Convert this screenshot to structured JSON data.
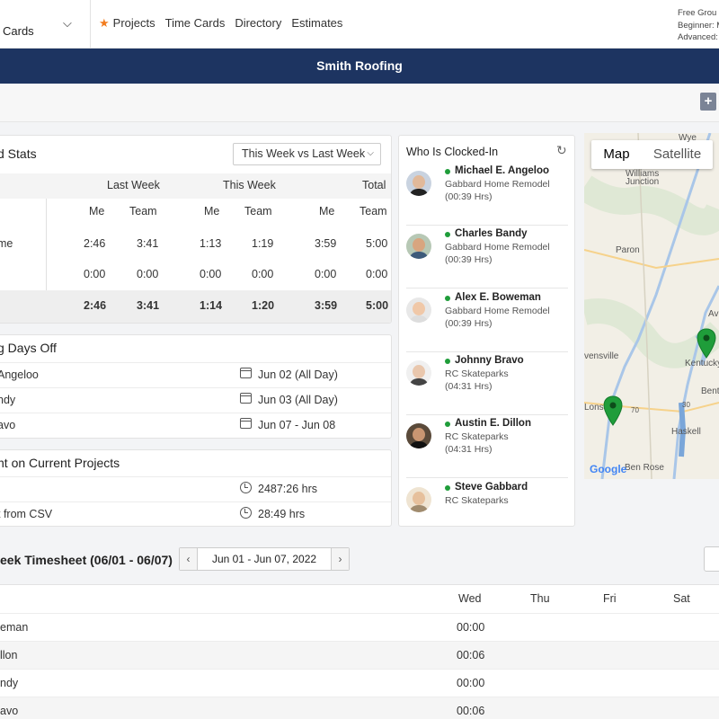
{
  "nav": {
    "select_label": "Cards",
    "links": [
      "Projects",
      "Time Cards",
      "Directory",
      "Estimates"
    ],
    "group_info": [
      "Free Grou",
      "Beginner: M",
      "Advanced: M"
    ]
  },
  "company": {
    "name": "Smith Roofing"
  },
  "stats": {
    "title": "d Stats",
    "period": "This Week vs Last Week",
    "group_headers": [
      "Last Week",
      "This Week",
      "Total"
    ],
    "sub_headers": [
      "Me",
      "Team",
      "Me",
      "Team",
      "Me",
      "Team"
    ],
    "rows": [
      {
        "label": "me",
        "values": [
          "2:46",
          "3:41",
          "1:13",
          "1:19",
          "3:59",
          "5:00"
        ]
      },
      {
        "label": "",
        "values": [
          "0:00",
          "0:00",
          "0:00",
          "0:00",
          "0:00",
          "0:00"
        ]
      }
    ],
    "totals": [
      "2:46",
      "3:41",
      "1:14",
      "1:20",
      "3:59",
      "5:00"
    ]
  },
  "days_off": {
    "title": "g Days Off",
    "items": [
      {
        "name": "Angeloo",
        "date": "Jun 02 (All Day)"
      },
      {
        "name": "ndy",
        "date": "Jun 03 (All Day)"
      },
      {
        "name": "avo",
        "date": "Jun 07 - Jun 08"
      }
    ]
  },
  "time_spent": {
    "title": "nt on Current Projects",
    "items": [
      {
        "name": "",
        "value": "2487:26 hrs"
      },
      {
        "name": "t from CSV",
        "value": "28:49 hrs"
      }
    ]
  },
  "clocked_in": {
    "title": "Who Is Clocked-In",
    "people": [
      {
        "name": "Michael E. Angeloo",
        "project": "Gabbard Home Remodel",
        "hours": "(00:39 Hrs)"
      },
      {
        "name": "Charles Bandy",
        "project": "Gabbard Home Remodel",
        "hours": "(00:39 Hrs)"
      },
      {
        "name": "Alex E. Boweman",
        "project": "Gabbard Home Remodel",
        "hours": "(00:39 Hrs)"
      },
      {
        "name": "Johnny Bravo",
        "project": "RC Skateparks",
        "hours": "(04:31 Hrs)"
      },
      {
        "name": "Austin E. Dillon",
        "project": "RC Skateparks",
        "hours": "(04:31 Hrs)"
      },
      {
        "name": "Steve Gabbard",
        "project": "RC Skateparks",
        "hours": ""
      }
    ]
  },
  "map": {
    "tab_map": "Map",
    "tab_satellite": "Satellite",
    "labels": [
      "Wye",
      "Williams",
      "Junction",
      "Paron",
      "Kentucky",
      "Avil",
      "vensville",
      "Benton",
      "Lonsd",
      "Haskell",
      "Ben Rose",
      "70",
      "30"
    ],
    "logo": "Google",
    "marker_color": "#1f9d3a"
  },
  "timesheet": {
    "title": "eek Timesheet (06/01 - 06/07)",
    "range": "Jun 01 - Jun 07, 2022",
    "days": [
      "Wed",
      "Thu",
      "Fri",
      "Sat"
    ],
    "rows": [
      {
        "name": "eman",
        "wed": "00:00"
      },
      {
        "name": "llon",
        "wed": "00:06"
      },
      {
        "name": "ndy",
        "wed": "00:00"
      },
      {
        "name": "avo",
        "wed": "00:06"
      }
    ]
  },
  "colors": {
    "banner": "#1d3461",
    "accent": "#f27c1e",
    "online": "#1f9d3a"
  }
}
